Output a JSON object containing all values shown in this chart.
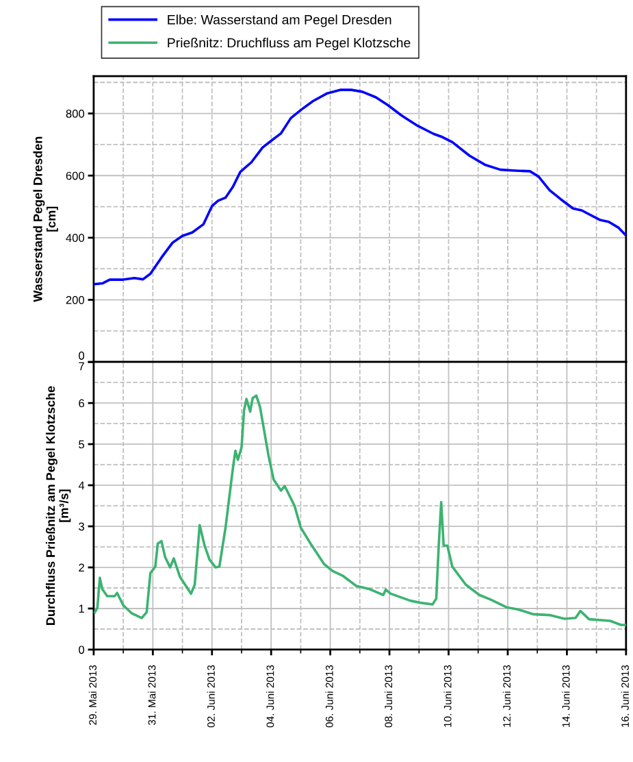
{
  "chart_data": [
    {
      "type": "line",
      "ylabel": "Wasserstand Pegel Dresden\n[cm]",
      "legend": "top",
      "grid": true,
      "tick_labels": "y",
      "xlim": [
        "2013-05-29",
        "2013-06-16"
      ],
      "xticks": [
        {
          "value": "2013-05-29",
          "label": null
        },
        {
          "value": "2013-05-30",
          "label": null
        },
        {
          "value": "2013-05-31",
          "label": null
        },
        {
          "value": "2013-06-01",
          "label": null
        },
        {
          "value": "2013-06-02",
          "label": null
        },
        {
          "value": "2013-06-03",
          "label": null
        },
        {
          "value": "2013-06-04",
          "label": null
        },
        {
          "value": "2013-06-05",
          "label": null
        },
        {
          "value": "2013-06-06",
          "label": null
        },
        {
          "value": "2013-06-07",
          "label": null
        },
        {
          "value": "2013-06-08",
          "label": null
        },
        {
          "value": "2013-06-09",
          "label": null
        },
        {
          "value": "2013-06-10",
          "label": null
        },
        {
          "value": "2013-06-11",
          "label": null
        },
        {
          "value": "2013-06-12",
          "label": null
        },
        {
          "value": "2013-06-13",
          "label": null
        },
        {
          "value": "2013-06-14",
          "label": null
        },
        {
          "value": "2013-06-15",
          "label": null
        },
        {
          "value": "2013-06-16",
          "label": null
        }
      ],
      "ylim": [
        0,
        920
      ],
      "yticks": [
        0,
        {
          "value": 100,
          "label": null
        },
        200,
        {
          "value": 300,
          "label": null
        },
        400,
        {
          "value": 500,
          "label": null
        },
        600,
        {
          "value": 700,
          "label": null
        },
        800,
        {
          "value": 900,
          "label": null
        }
      ],
      "series": [
        {
          "name": "Elbe: Wasserstand am Pegel Dresden",
          "color": "#0000ff",
          "x": [
            "2013-05-29T00:00",
            "2013-05-29T07:00",
            "2013-05-29T13:00",
            "2013-05-30T00:00",
            "2013-05-30T09:00",
            "2013-05-30T16:00",
            "2013-05-30T22:00",
            "2013-05-31T07:00",
            "2013-05-31T16:00",
            "2013-06-01T00:00",
            "2013-06-01T08:00",
            "2013-06-01T17:00",
            "2013-06-02T00:00",
            "2013-06-02T05:00",
            "2013-06-02T11:00",
            "2013-06-02T17:00",
            "2013-06-02T23:00",
            "2013-06-03T08:00",
            "2013-06-03T17:00",
            "2013-06-04T00:00",
            "2013-06-04T08:00",
            "2013-06-04T16:00",
            "2013-06-05T00:00",
            "2013-06-05T10:00",
            "2013-06-05T21:00",
            "2013-06-06T08:00",
            "2013-06-06T17:00",
            "2013-06-07T02:00",
            "2013-06-07T13:00",
            "2013-06-07T23:00",
            "2013-06-08T10:00",
            "2013-06-08T23:00",
            "2013-06-09T12:00",
            "2013-06-09T19:00",
            "2013-06-10T03:00",
            "2013-06-10T17:00",
            "2013-06-11T06:00",
            "2013-06-11T18:00",
            "2013-06-12T06:00",
            "2013-06-12T18:00",
            "2013-06-13T01:00",
            "2013-06-13T10:00",
            "2013-06-13T19:00",
            "2013-06-14T05:00",
            "2013-06-14T12:00",
            "2013-06-15T03:00",
            "2013-06-15T10:00",
            "2013-06-15T18:00",
            "2013-06-16T00:00"
          ],
          "values": [
            250,
            253,
            265,
            265,
            270,
            266,
            284,
            336,
            384,
            406,
            417,
            443,
            502,
            519,
            529,
            564,
            612,
            643,
            690,
            712,
            736,
            785,
            811,
            840,
            864,
            876,
            876,
            870,
            852,
            826,
            793,
            760,
            734,
            724,
            708,
            664,
            634,
            619,
            616,
            614,
            597,
            553,
            524,
            494,
            488,
            457,
            451,
            432,
            407
          ]
        }
      ]
    },
    {
      "type": "line",
      "ylabel": "Durchfluss Prießnitz am Pegel Klotzsche\n[m³/s]",
      "legend": "top",
      "grid": true,
      "xlim": [
        "2013-05-29",
        "2013-06-16"
      ],
      "xticks": [
        {
          "value": "2013-05-29",
          "label": "29. Mai 2013"
        },
        {
          "value": "2013-05-30",
          "label": null
        },
        {
          "value": "2013-05-31",
          "label": "31. Mai 2013"
        },
        {
          "value": "2013-06-01",
          "label": null
        },
        {
          "value": "2013-06-02",
          "label": "02. Juni 2013"
        },
        {
          "value": "2013-06-03",
          "label": null
        },
        {
          "value": "2013-06-04",
          "label": "04. Juni 2013"
        },
        {
          "value": "2013-06-05",
          "label": null
        },
        {
          "value": "2013-06-06",
          "label": "06. Juni 2013"
        },
        {
          "value": "2013-06-07",
          "label": null
        },
        {
          "value": "2013-06-08",
          "label": "08. Juni 2013"
        },
        {
          "value": "2013-06-09",
          "label": null
        },
        {
          "value": "2013-06-10",
          "label": "10. Juni 2013"
        },
        {
          "value": "2013-06-11",
          "label": null
        },
        {
          "value": "2013-06-12",
          "label": "12. Juni 2013"
        },
        {
          "value": "2013-06-13",
          "label": null
        },
        {
          "value": "2013-06-14",
          "label": "14. Juni 2013"
        },
        {
          "value": "2013-06-15",
          "label": null
        },
        {
          "value": "2013-06-16",
          "label": "16. Juni 2013"
        }
      ],
      "ylim": [
        0,
        7
      ],
      "yticks": [
        0,
        {
          "value": 0.5,
          "label": null
        },
        1,
        {
          "value": 1.5,
          "label": null
        },
        2,
        {
          "value": 2.5,
          "label": null
        },
        3,
        {
          "value": 3.5,
          "label": null
        },
        4,
        {
          "value": 4.5,
          "label": null
        },
        5,
        {
          "value": 5.5,
          "label": null
        },
        6,
        {
          "value": 6.5,
          "label": null
        },
        7
      ],
      "series": [
        {
          "name": "Prießnitz: Druchfluss am Pegel Klotzsche",
          "color": "#3cb371",
          "x": [
            "2013-05-29T01:00",
            "2013-05-29T03:00",
            "2013-05-29T05:00",
            "2013-05-29T07:00",
            "2013-05-29T11:00",
            "2013-05-29T14:00",
            "2013-05-29T17:00",
            "2013-05-29T19:00",
            "2013-05-30T00:00",
            "2013-05-30T07:00",
            "2013-05-30T15:00",
            "2013-05-30T19:00",
            "2013-05-30T22:00",
            "2013-05-31T02:00",
            "2013-05-31T04:00",
            "2013-05-31T07:00",
            "2013-05-31T10:00",
            "2013-05-31T14:00",
            "2013-05-31T17:00",
            "2013-05-31T22:00",
            "2013-06-01T07:00",
            "2013-06-01T10:00",
            "2013-06-01T14:00",
            "2013-06-01T18:00",
            "2013-06-01T22:00",
            "2013-06-02T03:00",
            "2013-06-02T06:00",
            "2013-06-02T11:00",
            "2013-06-02T17:00",
            "2013-06-02T19:00",
            "2013-06-02T21:00",
            "2013-06-03T00:00",
            "2013-06-03T02:00",
            "2013-06-03T04:00",
            "2013-06-03T07:00",
            "2013-06-03T09:00",
            "2013-06-03T12:00",
            "2013-06-03T15:00",
            "2013-06-03T22:00",
            "2013-06-04T02:00",
            "2013-06-04T08:00",
            "2013-06-04T11:00",
            "2013-06-04T19:00",
            "2013-06-05T00:00",
            "2013-06-05T08:00",
            "2013-06-05T19:00",
            "2013-06-06T02:00",
            "2013-06-06T10:00",
            "2013-06-06T21:00",
            "2013-06-07T08:00",
            "2013-06-07T19:00",
            "2013-06-07T21:00",
            "2013-06-08T01:00",
            "2013-06-08T17:00",
            "2013-06-09T01:00",
            "2013-06-09T11:00",
            "2013-06-09T14:00",
            "2013-06-09T16:00",
            "2013-06-09T18:00",
            "2013-06-09T20:00",
            "2013-06-09T23:00",
            "2013-06-10T03:00",
            "2013-06-10T14:00",
            "2013-06-11T01:00",
            "2013-06-11T10:00",
            "2013-06-11T23:00",
            "2013-06-12T08:00",
            "2013-06-12T21:00",
            "2013-06-13T10:00",
            "2013-06-13T22:00",
            "2013-06-14T07:00",
            "2013-06-14T11:00",
            "2013-06-14T18:00",
            "2013-06-15T11:00",
            "2013-06-15T20:00",
            "2013-06-16T00:00"
          ],
          "values": [
            0.91,
            1.02,
            1.75,
            1.47,
            1.3,
            1.3,
            1.3,
            1.38,
            1.08,
            0.88,
            0.77,
            0.91,
            1.86,
            2.02,
            2.58,
            2.64,
            2.25,
            2.0,
            2.22,
            1.77,
            1.36,
            1.58,
            3.03,
            2.53,
            2.19,
            2.0,
            2.02,
            2.97,
            4.42,
            4.84,
            4.62,
            4.92,
            5.82,
            6.1,
            5.79,
            6.12,
            6.18,
            5.9,
            4.7,
            4.14,
            3.87,
            3.98,
            3.5,
            2.97,
            2.58,
            2.08,
            1.91,
            1.8,
            1.55,
            1.47,
            1.33,
            1.46,
            1.36,
            1.19,
            1.14,
            1.1,
            1.24,
            2.53,
            3.59,
            2.53,
            2.53,
            2.02,
            1.58,
            1.33,
            1.22,
            1.03,
            0.98,
            0.86,
            0.84,
            0.75,
            0.77,
            0.94,
            0.74,
            0.7,
            0.6,
            0.6
          ]
        }
      ]
    }
  ]
}
